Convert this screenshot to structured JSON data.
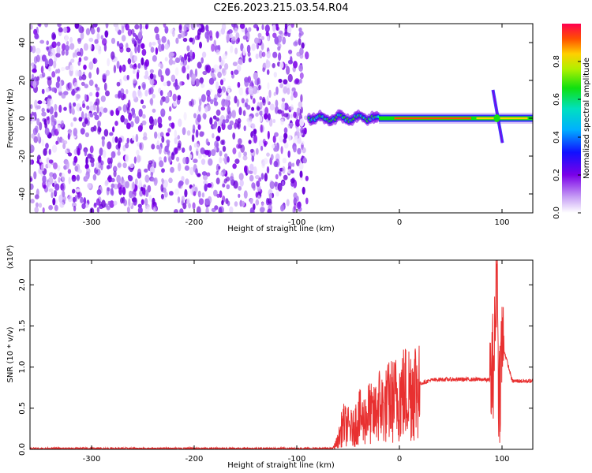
{
  "title": "C2E6.2023.215.03.54.R04",
  "chart_data": [
    {
      "type": "heatmap",
      "title": "C2E6.2023.215.03.54.R04",
      "xlabel": "Height of straight line (km)",
      "ylabel": "Frequency (Hz)",
      "xlim": [
        -360,
        130
      ],
      "ylim": [
        -50,
        50
      ],
      "xticks": [
        -300,
        -200,
        -100,
        0,
        100
      ],
      "yticks": [
        -40,
        -20,
        0,
        20,
        40
      ],
      "xtick_labels": [
        "-300",
        "-200",
        "-100",
        "0",
        "100"
      ],
      "ytick_labels": [
        "-40",
        "-20",
        "0",
        "20",
        "40"
      ],
      "noise_region_x": [
        -360,
        -90
      ],
      "signal_line_y": 0,
      "signal_segments": [
        {
          "x": [
            -88,
            -20
          ],
          "label": "turbulent trail"
        },
        {
          "x": [
            -20,
            130
          ],
          "label": "steady line"
        }
      ],
      "spike": {
        "x": 95,
        "y_range": [
          -13,
          15
        ]
      },
      "colorbar": {
        "label": "Normalized spectral amplitude",
        "range": [
          0.0,
          1.0
        ],
        "ticks": [
          0.0,
          0.2,
          0.4,
          0.6,
          0.8
        ],
        "tick_labels": [
          "0.0",
          "0.2",
          "0.4",
          "0.6",
          "0.8"
        ]
      }
    },
    {
      "type": "line",
      "xlabel": "Height of straight line (km)",
      "ylabel": "SNR (10 * v/v)",
      "multiplier": "(x10⁴)",
      "xlim": [
        -360,
        130
      ],
      "ylim": [
        0.0,
        2.3
      ],
      "xticks": [
        -300,
        -200,
        -100,
        0,
        100
      ],
      "yticks": [
        0.0,
        0.5,
        1.0,
        1.5,
        2.0
      ],
      "xtick_labels": [
        "-300",
        "-200",
        "-100",
        "0",
        "100"
      ],
      "ytick_labels": [
        "0.0",
        "0.5",
        "1.0",
        "1.5",
        "2.0"
      ],
      "color": "#e83030",
      "series": [
        {
          "name": "SNR",
          "x": [
            -360,
            -65,
            -60,
            -55,
            -45,
            -40,
            -35,
            -30,
            -25,
            -20,
            -15,
            -10,
            -5,
            0,
            10,
            20,
            30,
            40,
            60,
            80,
            90,
            93,
            95,
            97,
            100,
            110,
            130
          ],
          "y": [
            0.01,
            0.01,
            0.1,
            0.3,
            0.25,
            0.4,
            0.35,
            0.45,
            0.4,
            0.55,
            0.5,
            0.58,
            0.6,
            0.65,
            0.72,
            0.8,
            0.84,
            0.85,
            0.85,
            0.85,
            0.84,
            1.3,
            2.25,
            0.6,
            1.3,
            0.83,
            0.83
          ]
        }
      ]
    }
  ]
}
